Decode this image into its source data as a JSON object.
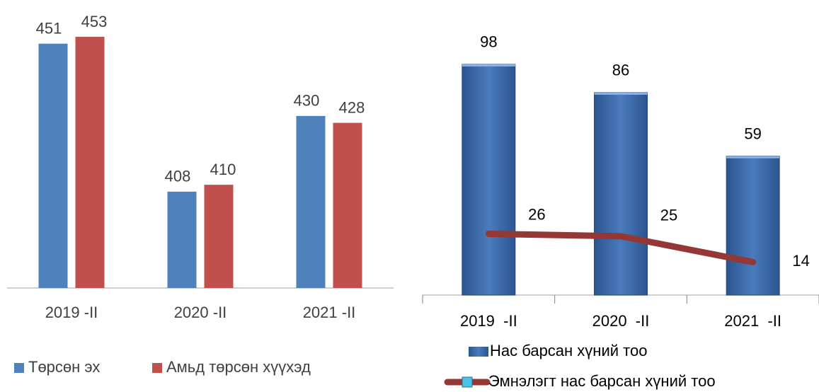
{
  "chart_data": [
    {
      "type": "bar",
      "categories": [
        "2019 -II",
        "2020 -II",
        "2021 -II"
      ],
      "series": [
        {
          "name": "Төрсөн эх",
          "color": "#4f81bd",
          "values": [
            451,
            408,
            430
          ]
        },
        {
          "name": "Амьд төрсөн хүүхэд",
          "color": "#c0504d",
          "values": [
            453,
            410,
            428
          ]
        }
      ],
      "ylim": [
        380,
        460
      ],
      "legend": "bottom"
    },
    {
      "type": "bar",
      "categories": [
        "2019  -II",
        "2020  -II",
        "2021  -II"
      ],
      "series": [
        {
          "name": "Нас барсан хүний тоо",
          "color": "#3b6aa6",
          "values": [
            98,
            86,
            59
          ]
        },
        {
          "name": "Эмнэлэгт нас барсан хүний тоо",
          "color": "#953735",
          "type": "line",
          "values": [
            26,
            25,
            14
          ]
        }
      ],
      "ylim": [
        0,
        110
      ],
      "legend": "bottom"
    }
  ]
}
